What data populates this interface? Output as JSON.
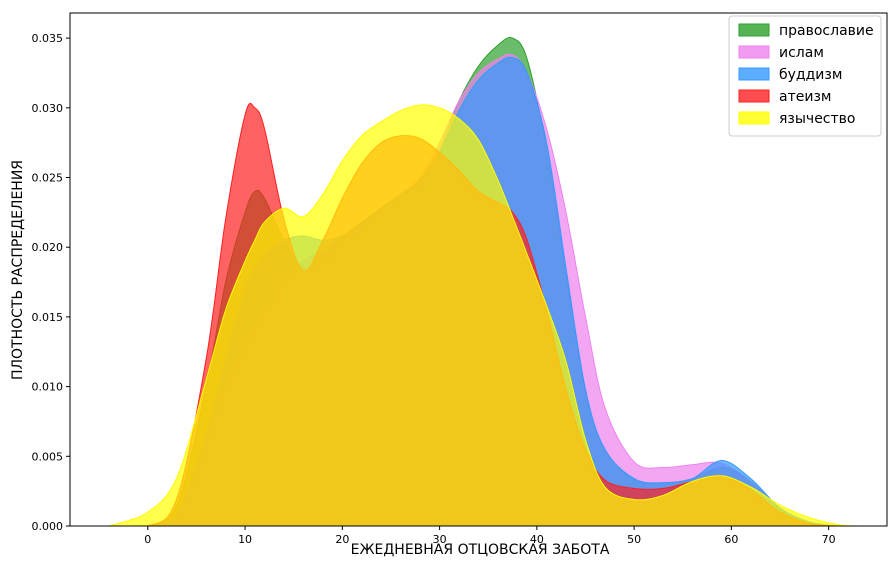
{
  "chart_data": {
    "type": "area",
    "xlabel": "ЕЖЕДНЕВНАЯ ОТЦОВСКАЯ ЗАБОТА",
    "ylabel": "ПЛОТНОСТЬ РАСПРЕДЕЛЕНИЯ",
    "xlim": [
      -8,
      76
    ],
    "ylim": [
      0,
      0.0368
    ],
    "x_ticks": [
      0,
      10,
      20,
      30,
      40,
      50,
      60,
      70
    ],
    "y_ticks": [
      0.0,
      0.005,
      0.01,
      0.015,
      0.02,
      0.025,
      0.03,
      0.035
    ],
    "y_tick_labels": [
      "0.000",
      "0.005",
      "0.010",
      "0.015",
      "0.020",
      "0.025",
      "0.030",
      "0.035"
    ],
    "legend_position": "top-right",
    "x": [
      -4,
      0,
      3,
      6,
      8,
      10,
      11,
      12,
      14,
      16,
      18,
      20,
      22,
      24,
      26,
      28,
      30,
      32,
      34,
      36,
      37.5,
      39,
      41,
      43,
      45,
      47,
      50,
      53,
      56,
      59,
      62,
      65,
      68,
      71,
      73
    ],
    "series": [
      {
        "name": "православие",
        "color": "#2ca02c",
        "values": [
          0,
          0,
          0.0015,
          0.01,
          0.0175,
          0.0225,
          0.024,
          0.0235,
          0.0205,
          0.0185,
          0.019,
          0.0205,
          0.0215,
          0.0228,
          0.0238,
          0.0248,
          0.027,
          0.0305,
          0.033,
          0.0345,
          0.035,
          0.0335,
          0.027,
          0.018,
          0.0095,
          0.0055,
          0.0033,
          0.0031,
          0.0034,
          0.0042,
          0.0032,
          0.0012,
          0.0003,
          0,
          0
        ]
      },
      {
        "name": "ислам",
        "color": "#ee82ee",
        "values": [
          0,
          0,
          0.0008,
          0.006,
          0.01,
          0.013,
          0.0143,
          0.0155,
          0.0175,
          0.019,
          0.0197,
          0.0208,
          0.0218,
          0.0228,
          0.0238,
          0.025,
          0.0275,
          0.0305,
          0.0325,
          0.0335,
          0.0338,
          0.0325,
          0.0285,
          0.0225,
          0.015,
          0.0085,
          0.0046,
          0.0042,
          0.0044,
          0.0045,
          0.0032,
          0.0013,
          0.0003,
          0,
          0
        ]
      },
      {
        "name": "буддизм",
        "color": "#3399ff",
        "values": [
          0,
          0,
          0.0008,
          0.0065,
          0.012,
          0.017,
          0.0185,
          0.0195,
          0.0205,
          0.0208,
          0.0205,
          0.0208,
          0.0218,
          0.0228,
          0.0238,
          0.0248,
          0.0268,
          0.0298,
          0.032,
          0.0332,
          0.0336,
          0.0325,
          0.0275,
          0.0185,
          0.0098,
          0.0055,
          0.0034,
          0.0031,
          0.0034,
          0.0047,
          0.0034,
          0.0013,
          0.0003,
          0,
          0
        ]
      },
      {
        "name": "атеизм",
        "color": "#ff2020",
        "values": [
          0,
          0,
          0.002,
          0.012,
          0.022,
          0.0295,
          0.03,
          0.0285,
          0.022,
          0.0183,
          0.0205,
          0.0235,
          0.026,
          0.0275,
          0.028,
          0.0278,
          0.0268,
          0.0255,
          0.024,
          0.0232,
          0.0225,
          0.0205,
          0.0155,
          0.0098,
          0.0055,
          0.0033,
          0.0027,
          0.0027,
          0.0032,
          0.0036,
          0.0026,
          0.001,
          0.0002,
          0,
          0
        ]
      },
      {
        "name": "язычество",
        "color": "#ffff00",
        "values": [
          0,
          0.001,
          0.0035,
          0.0105,
          0.0155,
          0.019,
          0.0205,
          0.0218,
          0.0228,
          0.0222,
          0.0238,
          0.0262,
          0.028,
          0.029,
          0.0298,
          0.0302,
          0.03,
          0.0292,
          0.0277,
          0.0248,
          0.0222,
          0.0195,
          0.0158,
          0.0118,
          0.0062,
          0.0028,
          0.0019,
          0.0022,
          0.0032,
          0.0036,
          0.0028,
          0.0015,
          0.0006,
          0.0001,
          0
        ]
      }
    ]
  }
}
